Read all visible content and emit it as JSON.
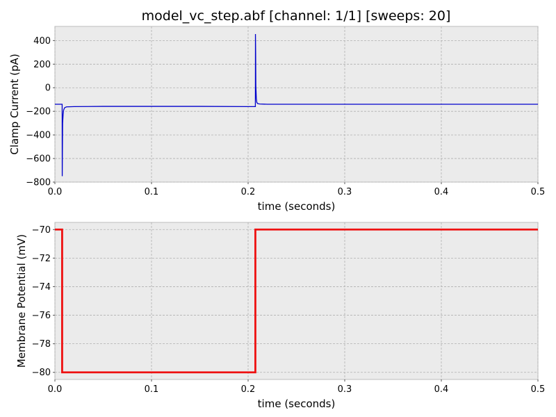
{
  "title": "model_vc_step.abf [channel: 1/1] [sweeps: 20]",
  "chart_data": [
    {
      "type": "line",
      "xlabel": "time (seconds)",
      "ylabel": "Clamp Current (pA)",
      "xlim": [
        0,
        0.5
      ],
      "ylim": [
        -800,
        520
      ],
      "xticks": [
        0.0,
        0.1,
        0.2,
        0.3,
        0.4,
        0.5
      ],
      "xtick_labels": [
        "0.0",
        "0.1",
        "0.2",
        "0.3",
        "0.4",
        "0.5"
      ],
      "yticks": [
        -800,
        -600,
        -400,
        -200,
        0,
        200,
        400
      ],
      "ytick_labels": [
        "−800",
        "−600",
        "−400",
        "−200",
        "0",
        "200",
        "400"
      ],
      "grid": true,
      "series": [
        {
          "color": "#0000cc",
          "x": [
            0.0,
            0.0075,
            0.0076,
            0.0078,
            0.008,
            0.0085,
            0.009,
            0.01,
            0.012,
            0.02,
            0.05,
            0.1,
            0.15,
            0.2,
            0.2075,
            0.2076,
            0.2078,
            0.208,
            0.2085,
            0.209,
            0.21,
            0.212,
            0.22,
            0.3,
            0.4,
            0.5
          ],
          "y": [
            -140,
            -140,
            -750,
            -500,
            -300,
            -230,
            -190,
            -170,
            -162,
            -160,
            -158,
            -158,
            -158,
            -160,
            -160,
            455,
            300,
            20,
            -90,
            -125,
            -135,
            -138,
            -140,
            -140,
            -140,
            -140
          ]
        }
      ]
    },
    {
      "type": "line",
      "xlabel": "time (seconds)",
      "ylabel": "Membrane Potential (mV)",
      "xlim": [
        0,
        0.5
      ],
      "ylim": [
        -80.5,
        -69.5
      ],
      "xticks": [
        0.0,
        0.1,
        0.2,
        0.3,
        0.4,
        0.5
      ],
      "xtick_labels": [
        "0.0",
        "0.1",
        "0.2",
        "0.3",
        "0.4",
        "0.5"
      ],
      "yticks": [
        -80,
        -78,
        -76,
        -74,
        -72,
        -70
      ],
      "ytick_labels": [
        "−80",
        "−78",
        "−76",
        "−74",
        "−72",
        "−70"
      ],
      "grid": true,
      "series": [
        {
          "color": "#ee1111",
          "x": [
            0.0,
            0.0075,
            0.0075,
            0.2075,
            0.2075,
            0.5
          ],
          "y": [
            -70,
            -70,
            -80,
            -80,
            -70,
            -70
          ]
        }
      ]
    }
  ]
}
